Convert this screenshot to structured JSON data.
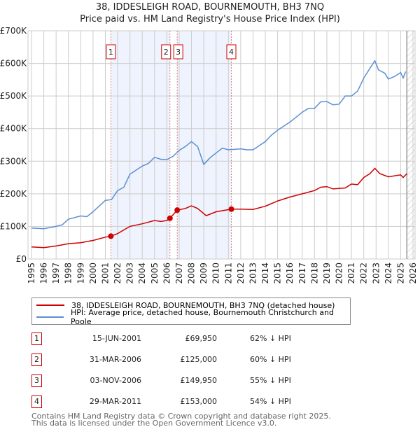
{
  "chart_data": {
    "type": "line",
    "title": "38, IDDESLEIGH ROAD, BOURNEMOUTH, BH3 7NQ",
    "subtitle": "Price paid vs. HM Land Registry's House Price Index (HPI)",
    "xlim": [
      1995,
      2026
    ],
    "ylim": [
      0,
      700000
    ],
    "y_ticks": [
      0,
      100000,
      200000,
      300000,
      400000,
      500000,
      600000,
      700000
    ],
    "y_tick_labels": [
      "£0",
      "£100K",
      "£200K",
      "£300K",
      "£400K",
      "£500K",
      "£600K",
      "£700K"
    ],
    "x_ticks": [
      1995,
      1996,
      1997,
      1998,
      1999,
      2000,
      2001,
      2002,
      2003,
      2004,
      2005,
      2006,
      2007,
      2008,
      2009,
      2010,
      2011,
      2012,
      2013,
      2014,
      2015,
      2016,
      2017,
      2018,
      2019,
      2020,
      2021,
      2022,
      2023,
      2024,
      2025,
      2026
    ],
    "grid": true,
    "projection_start": 2025.5,
    "shaded_ranges": [
      [
        2001.45,
        2006.25
      ],
      [
        2006.84,
        2011.24
      ]
    ],
    "series": [
      {
        "name": "38, IDDESLEIGH ROAD, BOURNEMOUTH, BH3 7NQ (detached house)",
        "color": "#cc0000",
        "x": [
          1995,
          1996,
          1997,
          1998,
          1999,
          2000,
          2001,
          2001.45,
          2002,
          2003,
          2004,
          2005,
          2005.5,
          2006,
          2006.25,
          2006.84,
          2007.5,
          2008,
          2008.5,
          2009.2,
          2010,
          2011.24,
          2012,
          2013,
          2014,
          2015,
          2016,
          2017,
          2018,
          2018.5,
          2019,
          2019.5,
          2020.5,
          2021,
          2021.5,
          2022,
          2022.5,
          2022.9,
          2023.3,
          2024,
          2025,
          2025.2,
          2025.5
        ],
        "y": [
          37000,
          35000,
          40000,
          47000,
          50000,
          57000,
          67000,
          69950,
          78000,
          100000,
          108000,
          118000,
          115000,
          118000,
          125000,
          149950,
          155000,
          163000,
          155000,
          133000,
          145000,
          153000,
          153000,
          152000,
          162000,
          178000,
          190000,
          200000,
          210000,
          220000,
          222000,
          215000,
          218000,
          230000,
          228000,
          250000,
          262000,
          278000,
          262000,
          252000,
          258000,
          250000,
          262000
        ]
      },
      {
        "name": "HPI: Average price, detached house, Bournemouth Christchurch and Poole",
        "color": "#5b8fd4",
        "x": [
          1995,
          1996,
          1997,
          1997.5,
          1998,
          1999,
          1999.5,
          2000,
          2001,
          2001.5,
          2002,
          2002.5,
          2003,
          2004,
          2004.5,
          2005,
          2005.5,
          2006,
          2006.5,
          2007,
          2007.5,
          2008,
          2008.5,
          2009,
          2009.5,
          2010,
          2010.5,
          2011,
          2012,
          2012.5,
          2013,
          2014,
          2014.5,
          2015,
          2016,
          2016.5,
          2017,
          2017.5,
          2018,
          2018.5,
          2019,
          2019.5,
          2020,
          2020.5,
          2021,
          2021.5,
          2022,
          2022.5,
          2022.9,
          2023.2,
          2023.7,
          2024,
          2024.5,
          2025,
          2025.2,
          2025.4
        ],
        "y": [
          95000,
          93000,
          100000,
          105000,
          122000,
          132000,
          130000,
          145000,
          180000,
          182000,
          210000,
          220000,
          260000,
          285000,
          293000,
          312000,
          306000,
          305000,
          315000,
          333000,
          345000,
          360000,
          345000,
          290000,
          310000,
          325000,
          340000,
          335000,
          338000,
          335000,
          335000,
          360000,
          380000,
          395000,
          420000,
          435000,
          450000,
          462000,
          462000,
          482000,
          483000,
          473000,
          475000,
          500000,
          500000,
          515000,
          555000,
          585000,
          608000,
          580000,
          570000,
          552000,
          560000,
          572000,
          555000,
          575000
        ]
      }
    ],
    "sales": [
      {
        "label": "1",
        "x": 2001.45,
        "y": 69950
      },
      {
        "label": "2",
        "x": 2006.25,
        "y": 125000
      },
      {
        "label": "3",
        "x": 2006.84,
        "y": 149950
      },
      {
        "label": "4",
        "x": 2011.24,
        "y": 153000
      }
    ]
  },
  "legend": {
    "property": "38, IDDESLEIGH ROAD, BOURNEMOUTH, BH3 7NQ (detached house)",
    "hpi": "HPI: Average price, detached house, Bournemouth Christchurch and Poole"
  },
  "transactions": [
    {
      "num": "1",
      "date": "15-JUN-2001",
      "price": "£69,950",
      "hpi": "62% ↓ HPI"
    },
    {
      "num": "2",
      "date": "31-MAR-2006",
      "price": "£125,000",
      "hpi": "60% ↓ HPI"
    },
    {
      "num": "3",
      "date": "03-NOV-2006",
      "price": "£149,950",
      "hpi": "55% ↓ HPI"
    },
    {
      "num": "4",
      "date": "29-MAR-2011",
      "price": "£153,000",
      "hpi": "54% ↓ HPI"
    }
  ],
  "footer": {
    "line1": "Contains HM Land Registry data © Crown copyright and database right 2025.",
    "line2": "This data is licensed under the Open Government Licence v3.0."
  }
}
